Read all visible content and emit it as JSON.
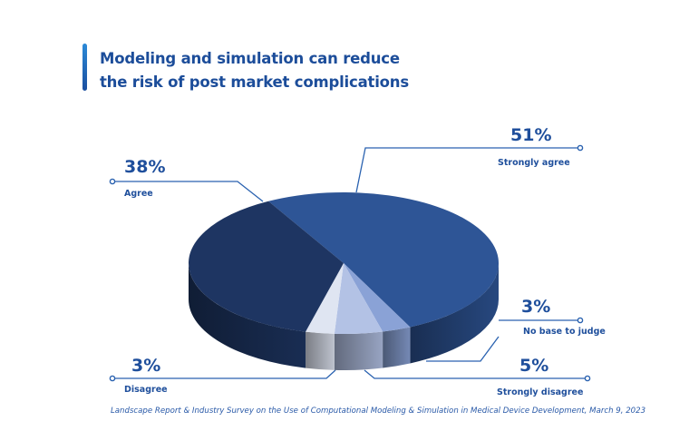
{
  "chart_data": {
    "type": "pie",
    "title": "Modeling and simulation can reduce the risk of post market complications",
    "title_lines": [
      "Modeling and simulation can reduce",
      "the risk of post market complications"
    ],
    "three_d": true,
    "slices": [
      {
        "label": "Strongly agree",
        "value": 51,
        "display": "51%",
        "color": "#2e5596"
      },
      {
        "label": "No base to judge",
        "value": 3,
        "display": "3%",
        "color": "#8aa2d6"
      },
      {
        "label": "Strongly disagree",
        "value": 5,
        "display": "5%",
        "color": "#b3c2e5"
      },
      {
        "label": "Disagree",
        "value": 3,
        "display": "3%",
        "color": "#dfe5f2"
      },
      {
        "label": "Agree",
        "value": 38,
        "display": "38%",
        "color": "#1e3562"
      }
    ],
    "source": "Landscape Report & Industry Survey on the Use of Computational Modeling & Simulation in Medical Device Development, March 9, 2023"
  },
  "colors": {
    "accent": "#1f4f9c",
    "callout_line": "#2a62b0"
  }
}
